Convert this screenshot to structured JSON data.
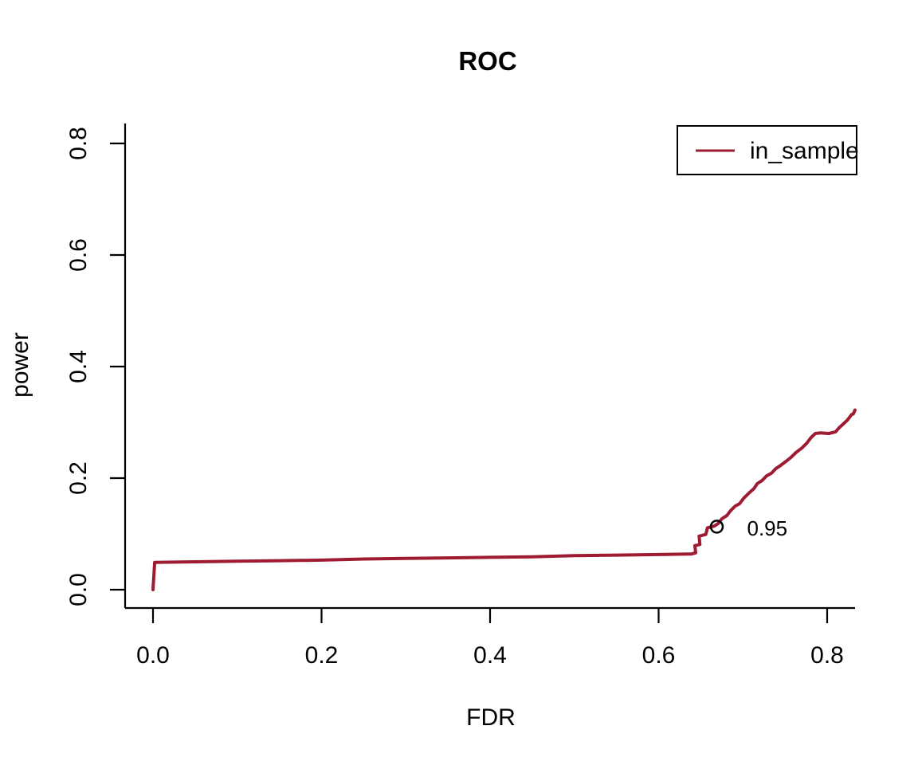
{
  "title": "ROC",
  "axes": {
    "xlabel": "FDR",
    "ylabel": "power",
    "x_tick_labels": [
      "0.0",
      "0.2",
      "0.4",
      "0.6",
      "0.8"
    ],
    "y_tick_labels": [
      "0.0",
      "0.2",
      "0.4",
      "0.6",
      "0.8"
    ]
  },
  "legend": {
    "position": "top-right",
    "items": [
      {
        "label": "in_sample",
        "color": "#9e1b32",
        "marker": "line"
      }
    ]
  },
  "annotation": {
    "label": "0.95"
  },
  "colors": {
    "line": "#9e1b32",
    "axis": "#000000",
    "marker_outline": "#000000",
    "annotation_text": "#9e1b32",
    "background": "#ffffff"
  },
  "chart_data": {
    "type": "line",
    "title": "ROC",
    "xlabel": "FDR",
    "ylabel": "power",
    "xlim": [
      -0.033,
      0.835
    ],
    "ylim": [
      -0.033,
      0.836
    ],
    "x_ticks": [
      0.0,
      0.2,
      0.4,
      0.6,
      0.8
    ],
    "y_ticks": [
      0.0,
      0.2,
      0.4,
      0.6,
      0.8
    ],
    "grid": false,
    "legend_position": "top-right",
    "series": [
      {
        "name": "in_sample",
        "color": "#9e1b32",
        "points": [
          [
            0.0,
            0.0
          ],
          [
            0.002,
            0.049
          ],
          [
            0.05,
            0.05
          ],
          [
            0.1,
            0.051
          ],
          [
            0.15,
            0.052
          ],
          [
            0.2,
            0.053
          ],
          [
            0.25,
            0.055
          ],
          [
            0.3,
            0.056
          ],
          [
            0.35,
            0.057
          ],
          [
            0.4,
            0.058
          ],
          [
            0.45,
            0.059
          ],
          [
            0.5,
            0.061
          ],
          [
            0.55,
            0.062
          ],
          [
            0.6,
            0.063
          ],
          [
            0.636,
            0.064
          ],
          [
            0.639,
            0.064
          ],
          [
            0.644,
            0.066
          ],
          [
            0.643,
            0.079
          ],
          [
            0.649,
            0.081
          ],
          [
            0.648,
            0.096
          ],
          [
            0.656,
            0.099
          ],
          [
            0.658,
            0.111
          ],
          [
            0.666,
            0.114
          ],
          [
            0.671,
            0.119
          ],
          [
            0.675,
            0.127
          ],
          [
            0.681,
            0.133
          ],
          [
            0.685,
            0.141
          ],
          [
            0.691,
            0.15
          ],
          [
            0.696,
            0.154
          ],
          [
            0.701,
            0.164
          ],
          [
            0.707,
            0.173
          ],
          [
            0.713,
            0.181
          ],
          [
            0.717,
            0.19
          ],
          [
            0.723,
            0.196
          ],
          [
            0.728,
            0.204
          ],
          [
            0.734,
            0.209
          ],
          [
            0.739,
            0.217
          ],
          [
            0.745,
            0.223
          ],
          [
            0.752,
            0.231
          ],
          [
            0.757,
            0.237
          ],
          [
            0.763,
            0.246
          ],
          [
            0.77,
            0.254
          ],
          [
            0.776,
            0.263
          ],
          [
            0.781,
            0.273
          ],
          [
            0.786,
            0.28
          ],
          [
            0.792,
            0.281
          ],
          [
            0.802,
            0.28
          ],
          [
            0.81,
            0.283
          ],
          [
            0.814,
            0.29
          ],
          [
            0.819,
            0.297
          ],
          [
            0.824,
            0.304
          ],
          [
            0.827,
            0.31
          ],
          [
            0.829,
            0.314
          ],
          [
            0.831,
            0.315
          ],
          [
            0.833,
            0.322
          ]
        ]
      }
    ],
    "marked_point": {
      "x": 0.669,
      "y": 0.113,
      "label": "0.95",
      "marker": "open-circle",
      "marker_color": "#000000",
      "label_color": "#9e1b32"
    }
  }
}
